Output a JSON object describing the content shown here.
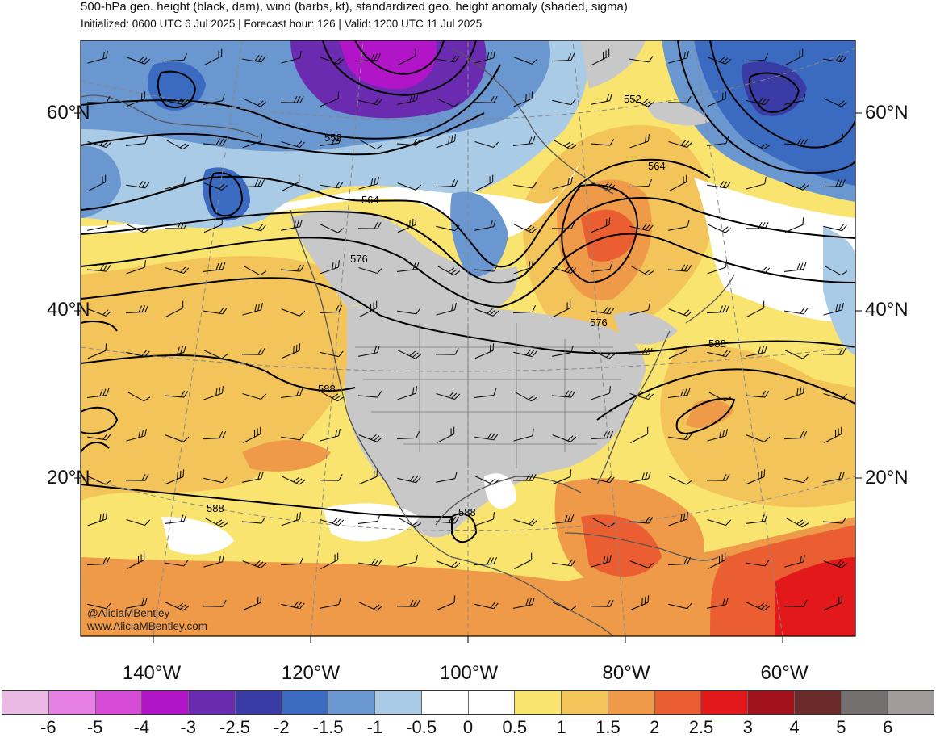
{
  "title": "500-hPa geo. height (black, dam), wind (barbs, kt), standardized geo. height anomaly (shaded, sigma)",
  "subtitle": "Initialized: 0600 UTC 6 Jul 2025 | Forecast hour: 126 | Valid: 1200 UTC 11 Jul 2025",
  "credits": {
    "handle": "@AliciaMBentley",
    "website": "www.AliciaMBentley.com"
  },
  "lat_labels": [
    "60°N",
    "40°N",
    "20°N"
  ],
  "lon_labels": [
    "140°W",
    "120°W",
    "100°W",
    "80°W",
    "60°W"
  ],
  "contour_labels": [
    "552",
    "552",
    "564",
    "564",
    "576",
    "576",
    "588",
    "588",
    "588",
    "588"
  ],
  "colorbar": {
    "labels": [
      "-6",
      "-5",
      "-4",
      "-3",
      "-2.5",
      "-2",
      "-1.5",
      "-1",
      "-0.5",
      "0",
      "0.5",
      "1",
      "1.5",
      "2",
      "2.5",
      "3",
      "4",
      "5",
      "6"
    ],
    "colors": [
      "#eab9e4",
      "#e680e4",
      "#d54bd6",
      "#b215c8",
      "#6a2bb0",
      "#3a3ba4",
      "#3a6bc0",
      "#6a97d0",
      "#a9cbe6",
      "#ffffff",
      "#ffffff",
      "#f9e46f",
      "#f2c45a",
      "#ef9a48",
      "#ea5e32",
      "#e3181b",
      "#a1121a",
      "#6b2b2b",
      "#757070",
      "#a29b9b"
    ]
  }
}
